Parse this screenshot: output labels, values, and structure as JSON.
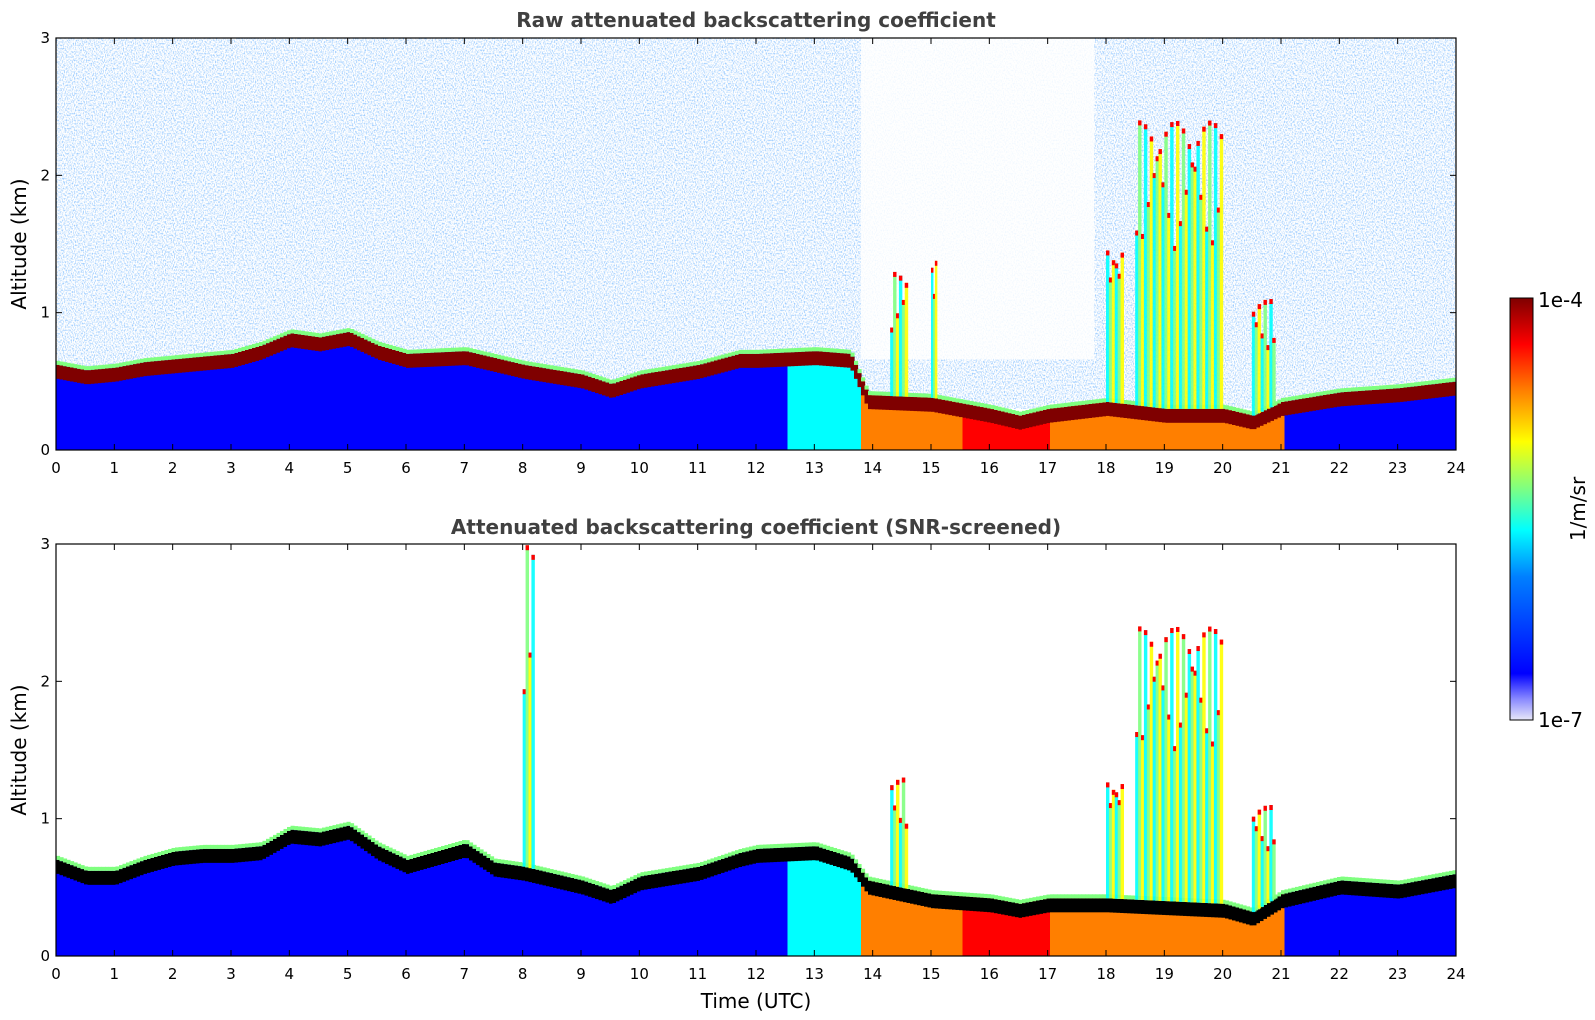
{
  "chart_data": [
    {
      "type": "heatmap",
      "title": "Raw attenuated backscattering coefficient",
      "xlabel": "",
      "ylabel": "Altitude (km)",
      "xlim": [
        0,
        24
      ],
      "ylim": [
        0,
        3
      ],
      "xticks": [
        0,
        1,
        2,
        3,
        4,
        5,
        6,
        7,
        8,
        9,
        10,
        11,
        12,
        13,
        14,
        15,
        16,
        17,
        18,
        19,
        20,
        21,
        22,
        23,
        24
      ],
      "yticks": [
        0,
        1,
        2,
        3
      ],
      "screened": false,
      "boundary_layer_top_km": [
        [
          0.0,
          0.62
        ],
        [
          0.5,
          0.58
        ],
        [
          1.0,
          0.6
        ],
        [
          1.5,
          0.64
        ],
        [
          2.0,
          0.66
        ],
        [
          2.5,
          0.68
        ],
        [
          3.0,
          0.7
        ],
        [
          3.5,
          0.76
        ],
        [
          4.0,
          0.85
        ],
        [
          4.5,
          0.82
        ],
        [
          5.0,
          0.86
        ],
        [
          5.5,
          0.76
        ],
        [
          6.0,
          0.7
        ],
        [
          7.0,
          0.72
        ],
        [
          8.0,
          0.62
        ],
        [
          9.0,
          0.55
        ],
        [
          9.5,
          0.48
        ],
        [
          10.0,
          0.55
        ],
        [
          11.0,
          0.62
        ],
        [
          11.7,
          0.7
        ],
        [
          12.0,
          0.7
        ],
        [
          13.0,
          0.72
        ],
        [
          13.6,
          0.7
        ],
        [
          13.9,
          0.4
        ],
        [
          15.0,
          0.38
        ],
        [
          16.0,
          0.3
        ],
        [
          16.5,
          0.25
        ],
        [
          17.0,
          0.3
        ],
        [
          18.0,
          0.35
        ],
        [
          19.0,
          0.3
        ],
        [
          20.0,
          0.3
        ],
        [
          20.5,
          0.25
        ],
        [
          21.0,
          0.35
        ],
        [
          22.0,
          0.42
        ],
        [
          23.0,
          0.45
        ],
        [
          24.0,
          0.5
        ]
      ],
      "cloud_features": [
        {
          "time_range": [
            14.3,
            14.6
          ],
          "top_km": 1.3
        },
        {
          "time_range": [
            15.0,
            15.1
          ],
          "top_km": 1.4
        },
        {
          "time_range": [
            18.0,
            18.3
          ],
          "top_km": 1.5
        },
        {
          "time_range": [
            18.5,
            20.0
          ],
          "top_km": 2.4
        },
        {
          "time_range": [
            20.5,
            20.9
          ],
          "top_km": 1.1
        }
      ],
      "colorbar": {
        "min": "1e-7",
        "max": "1e-4",
        "label": "1/m/sr",
        "scale": "log"
      }
    },
    {
      "type": "heatmap",
      "title": "Attenuated backscattering coefficient (SNR-screened)",
      "xlabel": "Time (UTC)",
      "ylabel": "Altitude (km)",
      "xlim": [
        0,
        24
      ],
      "ylim": [
        0,
        3
      ],
      "xticks": [
        0,
        1,
        2,
        3,
        4,
        5,
        6,
        7,
        8,
        9,
        10,
        11,
        12,
        13,
        14,
        15,
        16,
        17,
        18,
        19,
        20,
        21,
        22,
        23,
        24
      ],
      "yticks": [
        0,
        1,
        2,
        3
      ],
      "screened": true,
      "boundary_layer_top_km": [
        [
          0.0,
          0.7
        ],
        [
          0.5,
          0.62
        ],
        [
          1.0,
          0.62
        ],
        [
          1.5,
          0.7
        ],
        [
          2.0,
          0.76
        ],
        [
          2.5,
          0.78
        ],
        [
          3.0,
          0.78
        ],
        [
          3.5,
          0.8
        ],
        [
          4.0,
          0.92
        ],
        [
          4.5,
          0.9
        ],
        [
          5.0,
          0.95
        ],
        [
          5.5,
          0.8
        ],
        [
          6.0,
          0.7
        ],
        [
          7.0,
          0.82
        ],
        [
          7.5,
          0.68
        ],
        [
          8.0,
          0.65
        ],
        [
          9.0,
          0.55
        ],
        [
          9.5,
          0.48
        ],
        [
          10.0,
          0.58
        ],
        [
          11.0,
          0.65
        ],
        [
          11.7,
          0.75
        ],
        [
          12.0,
          0.78
        ],
        [
          13.0,
          0.8
        ],
        [
          13.6,
          0.72
        ],
        [
          13.9,
          0.55
        ],
        [
          15.0,
          0.45
        ],
        [
          16.0,
          0.42
        ],
        [
          16.5,
          0.38
        ],
        [
          17.0,
          0.42
        ],
        [
          18.0,
          0.42
        ],
        [
          19.0,
          0.4
        ],
        [
          20.0,
          0.38
        ],
        [
          20.5,
          0.32
        ],
        [
          21.0,
          0.45
        ],
        [
          22.0,
          0.55
        ],
        [
          23.0,
          0.52
        ],
        [
          24.0,
          0.6
        ]
      ],
      "cloud_features": [
        {
          "time_range": [
            8.0,
            8.2
          ],
          "top_km": 3.0
        },
        {
          "time_range": [
            14.3,
            14.6
          ],
          "top_km": 1.3
        },
        {
          "time_range": [
            18.0,
            18.3
          ],
          "top_km": 1.3
        },
        {
          "time_range": [
            18.5,
            20.0
          ],
          "top_km": 2.4
        },
        {
          "time_range": [
            20.5,
            20.9
          ],
          "top_km": 1.1
        }
      ],
      "colorbar": {
        "min": "1e-7",
        "max": "1e-4",
        "label": "1/m/sr",
        "scale": "log"
      }
    }
  ],
  "colorbar": {
    "max_label": "1e-4",
    "min_label": "1e-7",
    "unit_label": "1/m/sr"
  },
  "colors": {
    "jet": [
      "#00007f",
      "#0000ff",
      "#007fff",
      "#00ffff",
      "#7fff7f",
      "#ffff00",
      "#ff7f00",
      "#ff0000",
      "#7f0000"
    ],
    "screened_core": "#000000",
    "title_text": "#404040"
  }
}
